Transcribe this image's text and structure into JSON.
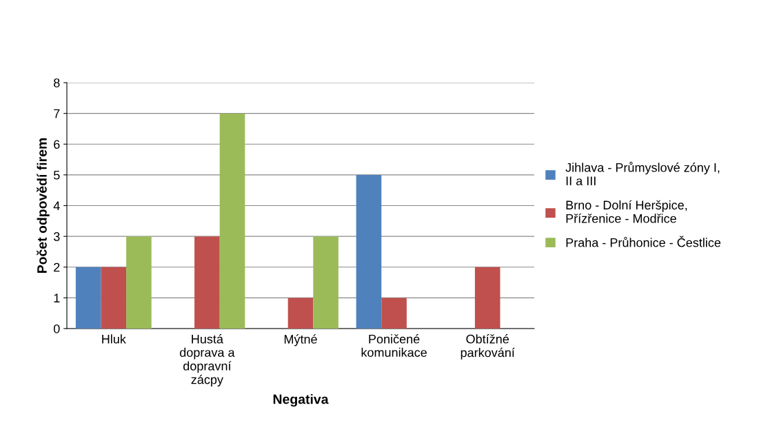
{
  "chart_data": {
    "type": "bar",
    "xlabel": "Negativa",
    "ylabel": "Počet odpovědí firem",
    "categories": [
      "Hluk",
      "Hustá\ndoprava a\ndopravní\nzácpy",
      "Mýtné",
      "Poničené\nkomunikace",
      "Obtížné\nparkování"
    ],
    "series": [
      {
        "name": "Jihlava - Průmyslové zóny I,\nII a III",
        "color": "#4f81bd",
        "values": [
          2,
          0,
          0,
          5,
          0
        ]
      },
      {
        "name": "Brno - Dolní Heršpice,\nPřízřenice - Modřice",
        "color": "#c0504d",
        "values": [
          2,
          3,
          1,
          1,
          2
        ]
      },
      {
        "name": "Praha - Průhonice - Čestlice",
        "color": "#9bbb59",
        "values": [
          3,
          7,
          3,
          0,
          0
        ]
      }
    ],
    "ylim": [
      0,
      8
    ],
    "yticks": [
      0,
      1,
      2,
      3,
      4,
      5,
      6,
      7,
      8
    ],
    "grid": "y",
    "legend": "right"
  }
}
